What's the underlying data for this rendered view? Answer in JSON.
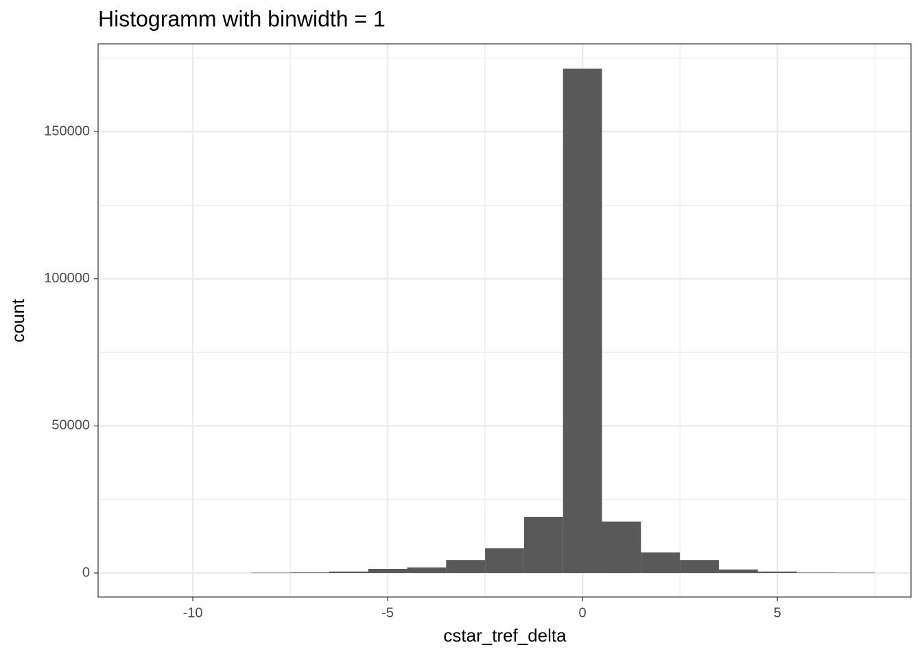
{
  "chart_data": {
    "type": "histogram",
    "title": "Histogramm with binwidth = 1",
    "x_label": "cstar_tref_delta",
    "y_label": "count",
    "bins": [
      -8.5,
      -7.5,
      -6.5,
      -5.5,
      -4.5,
      -3.5,
      -2.5,
      -1.5,
      -0.5,
      0.5,
      1.5,
      2.5,
      3.5,
      4.5,
      5.5,
      6.5,
      7.5
    ],
    "values": [
      100,
      200,
      500,
      1400,
      1900,
      4400,
      8400,
      19100,
      171400,
      17500,
      7000,
      4400,
      1200,
      500,
      150,
      100
    ],
    "color": "#595959",
    "xlim": [
      -12.43,
      8.43
    ],
    "xticks": [
      -10,
      -5,
      0,
      5
    ],
    "ylim": [
      -8150,
      179830
    ],
    "yticks": [
      0,
      50000,
      100000,
      150000
    ],
    "grid": true
  }
}
